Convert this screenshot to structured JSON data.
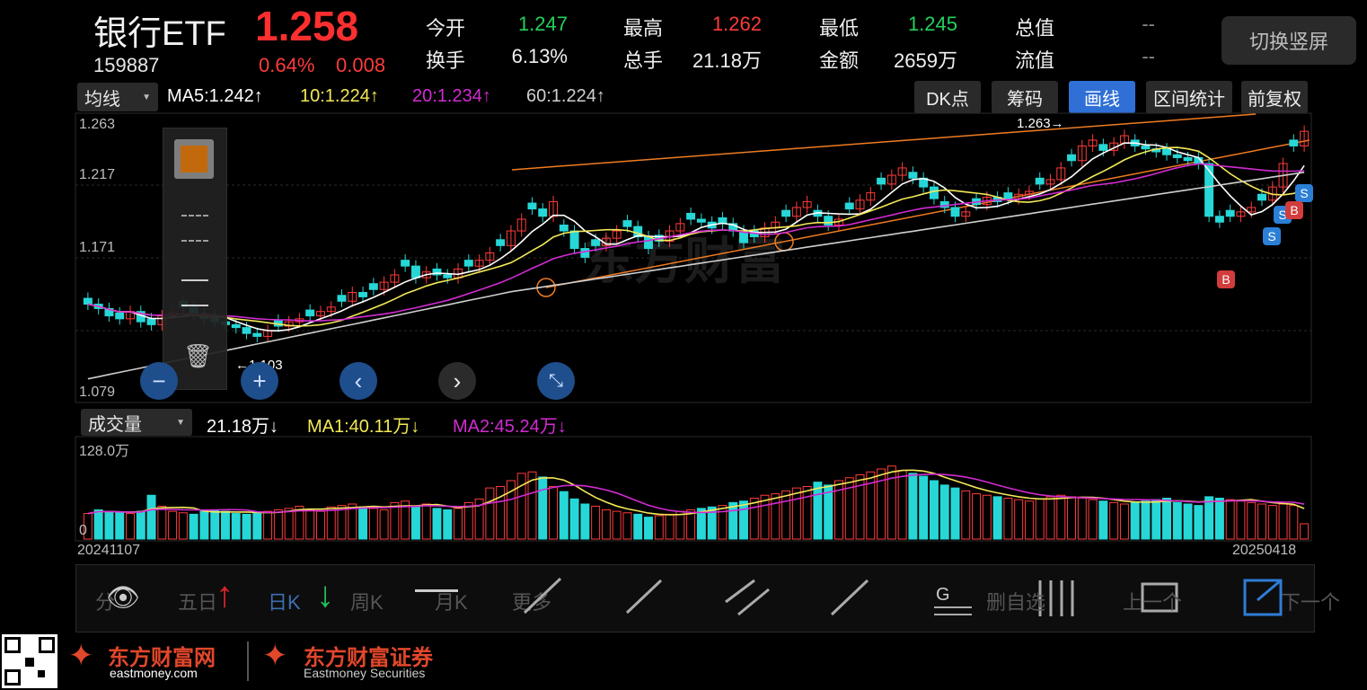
{
  "header": {
    "name": "银行ETF",
    "price": "1.258",
    "code": "159887",
    "change_pct": "0.64%",
    "change_amt": "0.008",
    "switch_button": "切换竖屏",
    "quotes": [
      {
        "label": "今开",
        "value": "1.247",
        "color": "green"
      },
      {
        "label": "最高",
        "value": "1.262",
        "color": "red"
      },
      {
        "label": "最低",
        "value": "1.245",
        "color": "green"
      },
      {
        "label": "总值",
        "value": "--",
        "color": "gray"
      },
      {
        "label": "换手",
        "value": "6.13%",
        "color": "white"
      },
      {
        "label": "总手",
        "value": "21.18万",
        "color": "white"
      },
      {
        "label": "金额",
        "value": "2659万",
        "color": "white"
      },
      {
        "label": "流值",
        "value": "--",
        "color": "gray"
      }
    ]
  },
  "toolbar": {
    "ma_dropdown": "均线",
    "ma5": "MA5:1.242↑",
    "ma10": "10:1.224↑",
    "ma20": "20:1.234↑",
    "ma60": "60:1.224↑",
    "buttons": [
      "DK点",
      "筹码",
      "画线",
      "区间统计",
      "前复权"
    ],
    "active_button": "画线"
  },
  "price_panel": {
    "y_labels": [
      "1.263",
      "1.217",
      "1.171",
      "1.079"
    ],
    "high_marker": "1.263→",
    "low_marker": "←1.103",
    "bs_markers": [
      "B",
      "S",
      "S",
      "S",
      "B"
    ]
  },
  "volume_panel": {
    "dropdown": "成交量",
    "vol": "21.18万↓",
    "ma1": "MA1:40.11万↓",
    "ma2": "MA2:45.24万↓",
    "y_top": "128.0万",
    "y_zero": "0",
    "date_start": "20241107",
    "date_end": "20250418"
  },
  "bottom_tools": {
    "labels": [
      "分",
      "五日",
      "日K",
      "周K",
      "月K",
      "更多",
      "删自选",
      "上一个",
      "下一个"
    ]
  },
  "branding": {
    "logo1": "东方财富网",
    "logo1_sub": "eastmoney.com",
    "logo2": "东方财富证券",
    "logo2_sub": "Eastmoney Securities"
  },
  "colors": {
    "up": "#ff3b3b",
    "down": "#27d7d7",
    "ma5": "#ffffff",
    "ma10": "#f3e957",
    "ma20": "#d22bd2",
    "ma60": "#cfcfcf",
    "trend": "#f07c22"
  },
  "chart_data": {
    "type": "candlestick",
    "price_range": [
      1.079,
      1.263
    ],
    "volume_max_wan": 128.0,
    "closes": [
      1.14,
      1.137,
      1.132,
      1.13,
      1.135,
      1.128,
      1.126,
      1.132,
      1.134,
      1.138,
      1.133,
      1.13,
      1.128,
      1.126,
      1.124,
      1.12,
      1.118,
      1.122,
      1.125,
      1.128,
      1.13,
      1.132,
      1.135,
      1.138,
      1.142,
      1.148,
      1.145,
      1.15,
      1.155,
      1.16,
      1.166,
      1.158,
      1.162,
      1.16,
      1.158,
      1.164,
      1.166,
      1.17,
      1.175,
      1.18,
      1.19,
      1.198,
      1.205,
      1.2,
      1.21,
      1.19,
      1.178,
      1.172,
      1.18,
      1.185,
      1.19,
      1.193,
      1.186,
      1.178,
      1.183,
      1.19,
      1.195,
      1.198,
      1.196,
      1.192,
      1.195,
      1.19,
      1.182,
      1.186,
      1.192,
      1.196,
      1.2,
      1.206,
      1.21,
      1.2,
      1.194,
      1.198,
      1.205,
      1.211,
      1.216,
      1.222,
      1.228,
      1.233,
      1.226,
      1.22,
      1.212,
      1.206,
      1.2,
      1.203,
      1.208,
      1.213,
      1.21,
      1.212,
      1.215,
      1.217,
      1.222,
      1.225,
      1.233,
      1.238,
      1.248,
      1.252,
      1.245,
      1.25,
      1.255,
      1.248,
      1.246,
      1.244,
      1.242,
      1.24,
      1.238,
      1.236,
      1.2,
      1.196,
      1.2,
      1.203,
      1.206,
      1.211,
      1.22,
      1.236,
      1.248,
      1.258
    ],
    "volumes": [
      35,
      40,
      38,
      36,
      35,
      38,
      60,
      45,
      38,
      36,
      34,
      38,
      40,
      38,
      35,
      34,
      36,
      38,
      40,
      42,
      45,
      40,
      38,
      44,
      46,
      48,
      44,
      42,
      40,
      50,
      52,
      44,
      48,
      42,
      40,
      42,
      50,
      55,
      70,
      72,
      80,
      90,
      92,
      85,
      72,
      65,
      55,
      48,
      45,
      40,
      38,
      36,
      34,
      30,
      32,
      34,
      38,
      40,
      42,
      44,
      46,
      50,
      52,
      56,
      60,
      62,
      66,
      70,
      72,
      78,
      74,
      80,
      84,
      88,
      92,
      96,
      100,
      94,
      90,
      86,
      80,
      74,
      70,
      66,
      62,
      60,
      58,
      56,
      54,
      52,
      55,
      58,
      60,
      58,
      56,
      54,
      52,
      50,
      48,
      50,
      52,
      54,
      56,
      50,
      48,
      46,
      58,
      56,
      54,
      52,
      50,
      48,
      46,
      48,
      46,
      21
    ]
  }
}
